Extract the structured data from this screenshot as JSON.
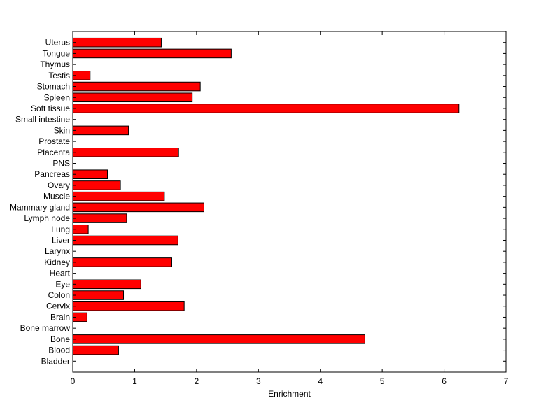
{
  "chart_data": {
    "type": "bar",
    "orientation": "horizontal",
    "xlabel": "Enrichment",
    "ylabel": "",
    "title": "",
    "xlim": [
      0,
      7
    ],
    "xticks": [
      "0",
      "1",
      "2",
      "3",
      "4",
      "5",
      "6",
      "7"
    ],
    "bar_color": "#ff0000",
    "categories": [
      "Bladder",
      "Blood",
      "Bone",
      "Bone marrow",
      "Brain",
      "Cervix",
      "Colon",
      "Eye",
      "Heart",
      "Kidney",
      "Larynx",
      "Liver",
      "Lung",
      "Lymph node",
      "Mammary gland",
      "Muscle",
      "Ovary",
      "Pancreas",
      "PNS",
      "Placenta",
      "Prostate",
      "Skin",
      "Small intestine",
      "Soft tissue",
      "Spleen",
      "Stomach",
      "Testis",
      "Thymus",
      "Tongue",
      "Uterus"
    ],
    "values": [
      0,
      0.74,
      4.72,
      0,
      0.23,
      1.8,
      0.82,
      1.1,
      0,
      1.6,
      0,
      1.7,
      0.25,
      0.87,
      2.12,
      1.48,
      0.77,
      0.56,
      0,
      1.71,
      0,
      0.9,
      0,
      6.24,
      1.93,
      2.06,
      0.28,
      0,
      2.56,
      1.43
    ],
    "grid": false,
    "legend": "none"
  }
}
